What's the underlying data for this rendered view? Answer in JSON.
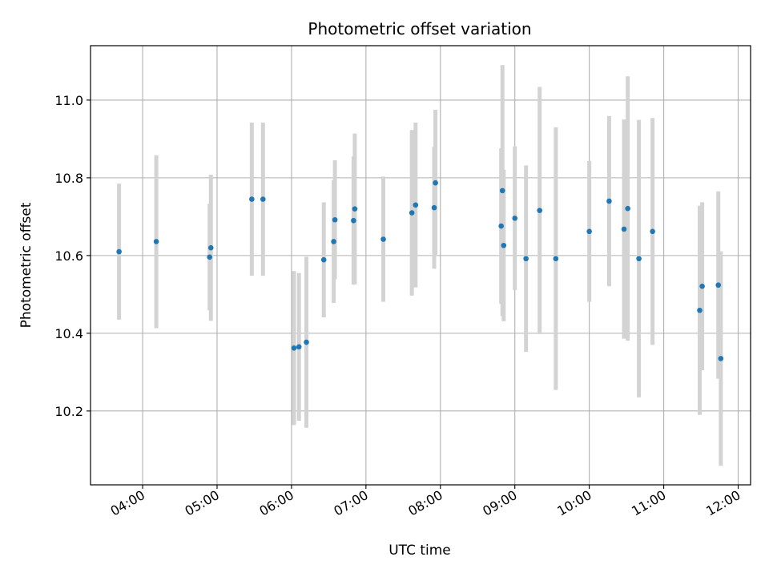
{
  "chart_data": {
    "type": "scatter",
    "title": "Photometric offset variation",
    "xlabel": "UTC time",
    "ylabel": "Photometric offset",
    "xlim": [
      "03:18",
      "12:10"
    ],
    "ylim": [
      10.01,
      11.14
    ],
    "grid": true,
    "x_ticks": [
      "04:00",
      "05:00",
      "06:00",
      "07:00",
      "08:00",
      "09:00",
      "10:00",
      "11:00",
      "12:00"
    ],
    "y_ticks": [
      10.2,
      10.4,
      10.6,
      10.8,
      11.0
    ],
    "y_tick_labels": [
      "10.2",
      "10.4",
      "10.6",
      "10.8",
      "11.0"
    ],
    "colors": {
      "marker": "#1f77b4",
      "errorbar": "#d3d3d3",
      "grid": "#b0b0b0"
    },
    "series": [
      {
        "marker": "dot",
        "errorbars": true,
        "points": [
          {
            "x": "03:41",
            "y": 10.61,
            "low": 10.435,
            "high": 10.785
          },
          {
            "x": "04:11",
            "y": 10.636,
            "low": 10.413,
            "high": 10.858
          },
          {
            "x": "04:54",
            "y": 10.596,
            "low": 10.459,
            "high": 10.733
          },
          {
            "x": "04:55",
            "y": 10.62,
            "low": 10.432,
            "high": 10.808
          },
          {
            "x": "05:28",
            "y": 10.745,
            "low": 10.548,
            "high": 10.942
          },
          {
            "x": "05:37",
            "y": 10.745,
            "low": 10.548,
            "high": 10.942
          },
          {
            "x": "06:02",
            "y": 10.362,
            "low": 10.164,
            "high": 10.56
          },
          {
            "x": "06:06",
            "y": 10.365,
            "low": 10.175,
            "high": 10.555
          },
          {
            "x": "06:12",
            "y": 10.377,
            "low": 10.157,
            "high": 10.597
          },
          {
            "x": "06:26",
            "y": 10.589,
            "low": 10.441,
            "high": 10.737
          },
          {
            "x": "06:34",
            "y": 10.636,
            "low": 10.478,
            "high": 10.794
          },
          {
            "x": "06:35",
            "y": 10.692,
            "low": 10.539,
            "high": 10.845
          },
          {
            "x": "06:50",
            "y": 10.69,
            "low": 10.525,
            "high": 10.855
          },
          {
            "x": "06:51",
            "y": 10.72,
            "low": 10.526,
            "high": 10.914
          },
          {
            "x": "07:14",
            "y": 10.642,
            "low": 10.481,
            "high": 10.803
          },
          {
            "x": "07:37",
            "y": 10.71,
            "low": 10.497,
            "high": 10.923
          },
          {
            "x": "07:40",
            "y": 10.73,
            "low": 10.518,
            "high": 10.942
          },
          {
            "x": "07:55",
            "y": 10.723,
            "low": 10.566,
            "high": 10.88
          },
          {
            "x": "07:56",
            "y": 10.787,
            "low": 10.599,
            "high": 10.975
          },
          {
            "x": "08:49",
            "y": 10.676,
            "low": 10.476,
            "high": 10.876
          },
          {
            "x": "08:50",
            "y": 10.767,
            "low": 10.444,
            "high": 11.09
          },
          {
            "x": "08:51",
            "y": 10.626,
            "low": 10.431,
            "high": 10.821
          },
          {
            "x": "09:00",
            "y": 10.696,
            "low": 10.511,
            "high": 10.881
          },
          {
            "x": "09:09",
            "y": 10.592,
            "low": 10.352,
            "high": 10.832
          },
          {
            "x": "09:20",
            "y": 10.716,
            "low": 10.398,
            "high": 11.034
          },
          {
            "x": "09:33",
            "y": 10.592,
            "low": 10.254,
            "high": 10.93
          },
          {
            "x": "10:00",
            "y": 10.662,
            "low": 10.481,
            "high": 10.843
          },
          {
            "x": "10:16",
            "y": 10.74,
            "low": 10.521,
            "high": 10.959
          },
          {
            "x": "10:28",
            "y": 10.668,
            "low": 10.386,
            "high": 10.95
          },
          {
            "x": "10:31",
            "y": 10.721,
            "low": 10.381,
            "high": 11.061
          },
          {
            "x": "10:40",
            "y": 10.592,
            "low": 10.235,
            "high": 10.949
          },
          {
            "x": "10:51",
            "y": 10.662,
            "low": 10.37,
            "high": 10.954
          },
          {
            "x": "11:29",
            "y": 10.459,
            "low": 10.19,
            "high": 10.728
          },
          {
            "x": "11:31",
            "y": 10.521,
            "low": 10.305,
            "high": 10.737
          },
          {
            "x": "11:44",
            "y": 10.524,
            "low": 10.283,
            "high": 10.765
          },
          {
            "x": "11:46",
            "y": 10.335,
            "low": 10.059,
            "high": 10.611
          }
        ]
      }
    ]
  }
}
